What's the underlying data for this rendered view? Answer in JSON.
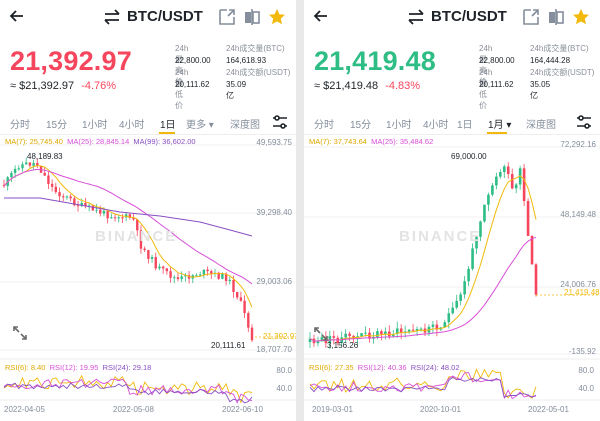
{
  "colors": {
    "up": "#2ebd85",
    "down": "#f6465d",
    "accent": "#f0b90b",
    "ma7": "#f0b90b",
    "ma25": "#d84fd8",
    "ma99": "#8a4fc4"
  },
  "left": {
    "pair": "BTC/USDT",
    "price": "21,392.97",
    "price_color": "#f6465d",
    "approx": "≈ $21,392.97",
    "change": "-4.76%",
    "stats": {
      "high_label": "24h最高价",
      "high": "22,800.00",
      "vol_btc_label": "24h成交量(BTC)",
      "vol_btc": "164,618.93",
      "low_label": "24h最低价",
      "low": "20,111.62",
      "vol_usdt_label": "24h成交额(USDT)",
      "vol_usdt": "35.09亿"
    },
    "tabs": [
      "分时",
      "15分",
      "1小时",
      "4小时",
      "1日",
      "更多 ▾",
      "深度图"
    ],
    "active_tab": "1日",
    "ma": {
      "ma7": "MA(7): 25,745.40",
      "ma25": "MA(25): 28,845.14",
      "ma99": "MA(99): 36,602.00"
    },
    "y_labels": [
      "49,593.75",
      "39,298.40",
      "29,003.06",
      "18,707.70"
    ],
    "high_ann": "48,189.83",
    "low_ann": "20,111.61",
    "last_tag": "21,392.97",
    "rsi": {
      "r6": "RSI(6): 8.40",
      "r12": "RSI(12): 19.95",
      "r24": "RSI(24): 29.18"
    },
    "rsi_labels": [
      "80.0",
      "40.0"
    ],
    "x_labels": [
      "2022-04-05",
      "2022-05-08",
      "2022-06-10"
    ],
    "watermark": "BINANCE"
  },
  "right": {
    "pair": "BTC/USDT",
    "price": "21,419.48",
    "price_color": "#2ebd85",
    "approx": "≈ $21,419.48",
    "change": "-4.83%",
    "stats": {
      "high_label": "24h最高价",
      "high": "22,800.00",
      "vol_btc_label": "24h成交量(BTC)",
      "vol_btc": "164,444.28",
      "low_label": "24h最低价",
      "low": "20,111.62",
      "vol_usdt_label": "24h成交额(USDT)",
      "vol_usdt": "35.05亿"
    },
    "tabs": [
      "分时",
      "15分",
      "1小时",
      "4小时",
      "1日",
      "1月 ▾",
      "深度图"
    ],
    "active_tab": "1月 ▾",
    "ma": {
      "ma7": "MA(7): 37,743.64",
      "ma25": "MA(25): 35,484.62"
    },
    "y_labels": [
      "72,292.16",
      "48,149.48",
      "24,006.76",
      "-135.92"
    ],
    "high_ann": "69,000.00",
    "low_ann": "3,156.26",
    "last_tag": "21,419.48",
    "rsi": {
      "r6": "RSI(6): 27.35",
      "r12": "RSI(12): 40.36",
      "r24": "RSI(24): 48.02"
    },
    "rsi_labels": [
      "80.0",
      "40.0"
    ],
    "x_labels": [
      "2019-03-01",
      "2020-10-01",
      "2022-05-01"
    ],
    "watermark": "BINANCE"
  }
}
